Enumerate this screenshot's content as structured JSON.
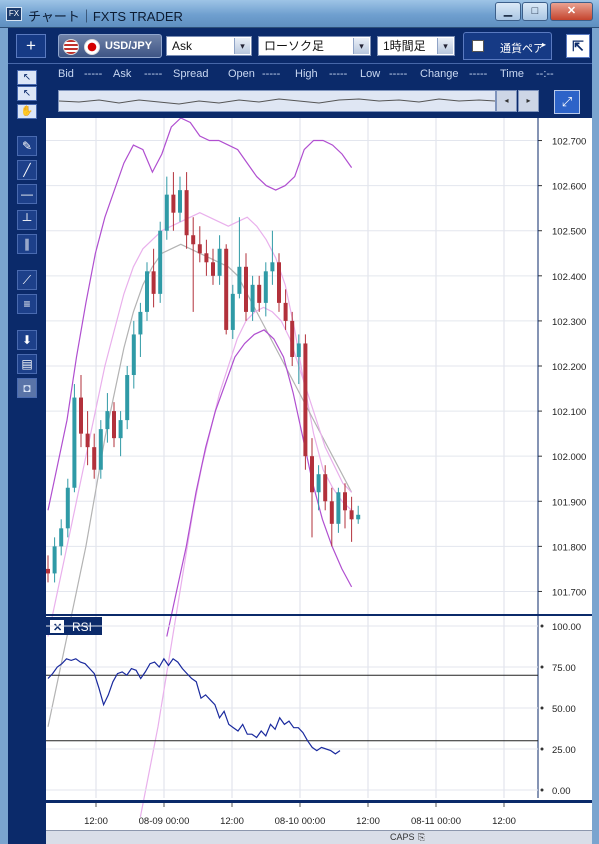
{
  "window": {
    "title": "チャート｜FXTS TRADER",
    "app_icon": "FX",
    "minimize": "▁",
    "maximize": "□",
    "close": "✕"
  },
  "toolbar": {
    "add_label": "+",
    "symbol": "USD/JPY",
    "price_type": "Ask",
    "chart_type": "ローソク足",
    "timeframe": "1時間足",
    "currency_tab": "通貨ペア",
    "currency_next": "▸",
    "detach_label": "⇱",
    "dropdown_arrow": "▾"
  },
  "info_bar": {
    "items": [
      {
        "label": "Bid",
        "value": "-----"
      },
      {
        "label": "Ask",
        "value": "-----"
      },
      {
        "label": "Spread",
        "value": ""
      },
      {
        "label": "Open",
        "value": "-----"
      },
      {
        "label": "High",
        "value": "-----"
      },
      {
        "label": "Low",
        "value": "-----"
      },
      {
        "label": "Change",
        "value": "-----"
      },
      {
        "label": "Time",
        "value": "--:--"
      }
    ]
  },
  "navigator": {
    "left_arrow": "◂",
    "right_arrow": "▸",
    "zoom_icon": "⤢"
  },
  "tools": [
    {
      "name": "pointer-icon",
      "glyph": "↖"
    },
    {
      "name": "crosshair-icon",
      "glyph": "↖"
    },
    {
      "name": "hand-icon",
      "glyph": "✋"
    },
    {
      "name": "trendline-tool-icon",
      "glyph": "✎"
    },
    {
      "name": "line-tool-icon",
      "glyph": "╱"
    },
    {
      "name": "horizontal-line-icon",
      "glyph": "—"
    },
    {
      "name": "vertical-line-icon",
      "glyph": "┴"
    },
    {
      "name": "parallel-lines-icon",
      "glyph": "∥"
    },
    {
      "name": "fan-tool-icon",
      "glyph": "⟋"
    },
    {
      "name": "fibonacci-icon",
      "glyph": "≡"
    },
    {
      "name": "download-icon",
      "glyph": "⬇"
    },
    {
      "name": "list-icon",
      "glyph": "▤"
    },
    {
      "name": "camera-icon",
      "glyph": "◘"
    }
  ],
  "chart_data": {
    "type": "candlestick",
    "symbol": "USD/JPY",
    "price_axis": {
      "ylim": [
        101.65,
        102.75
      ],
      "ticks": [
        "102.700",
        "102.600",
        "102.500",
        "102.400",
        "102.300",
        "102.200",
        "102.100",
        "102.000",
        "101.900",
        "101.800",
        "101.700"
      ]
    },
    "time_axis": {
      "labels": [
        "12:00",
        "08-09 00:00",
        "12:00",
        "08-10 00:00",
        "12:00",
        "08-11 00:00",
        "12:00"
      ]
    },
    "colors": {
      "up": "#2f9aa6",
      "down": "#b2313b",
      "band_outer": "#b04fd0",
      "band_mid": "#e9b0ec",
      "band_center": "#b3b3b3",
      "rsi": "#1a2a9e",
      "panel_border": "#0b2a6a"
    },
    "candles": [
      {
        "o": 101.75,
        "h": 101.78,
        "l": 101.72,
        "c": 101.74
      },
      {
        "o": 101.74,
        "h": 101.82,
        "l": 101.72,
        "c": 101.8
      },
      {
        "o": 101.8,
        "h": 101.86,
        "l": 101.78,
        "c": 101.84
      },
      {
        "o": 101.84,
        "h": 101.95,
        "l": 101.82,
        "c": 101.93
      },
      {
        "o": 101.93,
        "h": 102.16,
        "l": 101.92,
        "c": 102.13
      },
      {
        "o": 102.13,
        "h": 102.18,
        "l": 102.02,
        "c": 102.05
      },
      {
        "o": 102.05,
        "h": 102.1,
        "l": 101.98,
        "c": 102.02
      },
      {
        "o": 102.02,
        "h": 102.05,
        "l": 101.95,
        "c": 101.97
      },
      {
        "o": 101.97,
        "h": 102.08,
        "l": 101.95,
        "c": 102.06
      },
      {
        "o": 102.06,
        "h": 102.14,
        "l": 102.03,
        "c": 102.1
      },
      {
        "o": 102.1,
        "h": 102.12,
        "l": 102.02,
        "c": 102.04
      },
      {
        "o": 102.04,
        "h": 102.1,
        "l": 102.0,
        "c": 102.08
      },
      {
        "o": 102.08,
        "h": 102.2,
        "l": 102.06,
        "c": 102.18
      },
      {
        "o": 102.18,
        "h": 102.3,
        "l": 102.15,
        "c": 102.27
      },
      {
        "o": 102.27,
        "h": 102.34,
        "l": 102.22,
        "c": 102.32
      },
      {
        "o": 102.32,
        "h": 102.43,
        "l": 102.3,
        "c": 102.41
      },
      {
        "o": 102.41,
        "h": 102.46,
        "l": 102.33,
        "c": 102.36
      },
      {
        "o": 102.36,
        "h": 102.52,
        "l": 102.34,
        "c": 102.5
      },
      {
        "o": 102.5,
        "h": 102.62,
        "l": 102.48,
        "c": 102.58
      },
      {
        "o": 102.58,
        "h": 102.63,
        "l": 102.5,
        "c": 102.54
      },
      {
        "o": 102.54,
        "h": 102.62,
        "l": 102.52,
        "c": 102.59
      },
      {
        "o": 102.59,
        "h": 102.63,
        "l": 102.46,
        "c": 102.49
      },
      {
        "o": 102.49,
        "h": 102.53,
        "l": 102.32,
        "c": 102.47
      },
      {
        "o": 102.47,
        "h": 102.51,
        "l": 102.43,
        "c": 102.45
      },
      {
        "o": 102.45,
        "h": 102.48,
        "l": 102.4,
        "c": 102.43
      },
      {
        "o": 102.43,
        "h": 102.46,
        "l": 102.38,
        "c": 102.4
      },
      {
        "o": 102.4,
        "h": 102.49,
        "l": 102.38,
        "c": 102.46
      },
      {
        "o": 102.46,
        "h": 102.47,
        "l": 102.27,
        "c": 102.28
      },
      {
        "o": 102.28,
        "h": 102.38,
        "l": 102.26,
        "c": 102.36
      },
      {
        "o": 102.36,
        "h": 102.53,
        "l": 102.35,
        "c": 102.42
      },
      {
        "o": 102.42,
        "h": 102.45,
        "l": 102.3,
        "c": 102.32
      },
      {
        "o": 102.32,
        "h": 102.4,
        "l": 102.3,
        "c": 102.38
      },
      {
        "o": 102.38,
        "h": 102.4,
        "l": 102.32,
        "c": 102.34
      },
      {
        "o": 102.34,
        "h": 102.43,
        "l": 102.31,
        "c": 102.41
      },
      {
        "o": 102.41,
        "h": 102.5,
        "l": 102.38,
        "c": 102.43
      },
      {
        "o": 102.43,
        "h": 102.45,
        "l": 102.32,
        "c": 102.34
      },
      {
        "o": 102.34,
        "h": 102.37,
        "l": 102.28,
        "c": 102.3
      },
      {
        "o": 102.3,
        "h": 102.32,
        "l": 102.2,
        "c": 102.22
      },
      {
        "o": 102.22,
        "h": 102.27,
        "l": 102.16,
        "c": 102.25
      },
      {
        "o": 102.25,
        "h": 102.27,
        "l": 101.97,
        "c": 102.0
      },
      {
        "o": 102.0,
        "h": 102.04,
        "l": 101.82,
        "c": 101.92
      },
      {
        "o": 101.92,
        "h": 101.98,
        "l": 101.88,
        "c": 101.96
      },
      {
        "o": 101.96,
        "h": 101.98,
        "l": 101.88,
        "c": 101.9
      },
      {
        "o": 101.9,
        "h": 101.93,
        "l": 101.8,
        "c": 101.85
      },
      {
        "o": 101.85,
        "h": 101.93,
        "l": 101.83,
        "c": 101.92
      },
      {
        "o": 101.92,
        "h": 101.94,
        "l": 101.84,
        "c": 101.88
      },
      {
        "o": 101.88,
        "h": 101.91,
        "l": 101.81,
        "c": 101.86
      },
      {
        "o": 101.86,
        "h": 101.89,
        "l": 101.85,
        "c": 101.87
      }
    ],
    "bands": {
      "outer_upper": [
        101.88,
        101.98,
        102.08,
        102.22,
        102.34,
        102.45,
        102.53,
        102.59,
        102.65,
        102.69,
        102.68,
        102.63,
        102.67,
        102.73,
        102.75,
        102.74,
        102.71,
        102.7,
        102.7,
        102.69,
        102.68,
        102.65,
        102.62,
        102.6,
        102.59,
        102.6,
        102.62,
        102.68,
        102.7,
        102.7,
        102.69,
        102.67,
        102.64
      ],
      "mid_upper": [
        101.6,
        101.7,
        101.8,
        101.9,
        102.0,
        102.1,
        102.2,
        102.28,
        102.36,
        102.42,
        102.46,
        102.48,
        102.5,
        102.51,
        102.52,
        102.53,
        102.54,
        102.53,
        102.52,
        102.51,
        102.52,
        102.53,
        102.51,
        102.48,
        102.44,
        102.38,
        102.28,
        102.16,
        102.05,
        101.97,
        101.93,
        101.9,
        101.88
      ],
      "center": [
        101.4,
        101.5,
        101.6,
        101.7,
        101.8,
        101.92,
        102.04,
        102.14,
        102.24,
        102.32,
        102.38,
        102.42,
        102.45,
        102.46,
        102.47,
        102.46,
        102.45,
        102.44,
        102.43,
        102.42,
        102.4,
        102.36,
        102.32,
        102.28,
        102.24,
        102.2,
        102.16,
        102.12,
        102.08,
        102.04,
        102.0,
        101.96,
        101.92
      ],
      "mid_lower": [
        101.2,
        101.3,
        101.4,
        101.52,
        101.64,
        101.76,
        101.88,
        101.98,
        102.06,
        102.14,
        102.2,
        102.26,
        102.3,
        102.32,
        102.33,
        102.32,
        102.3,
        102.26,
        102.2,
        102.14,
        102.08,
        102.02,
        101.98,
        101.94,
        101.92
      ],
      "outer_lower": [
        101.6,
        101.7,
        101.8,
        101.92,
        102.02,
        102.1,
        102.16,
        102.22,
        102.25,
        102.27,
        102.28,
        102.26,
        102.22,
        102.14,
        102.04,
        101.94,
        101.86,
        101.8,
        101.75,
        101.71
      ]
    },
    "rsi": {
      "title": "RSI",
      "close_label": "✕",
      "ylim": [
        0,
        100
      ],
      "ticks": [
        "100.00",
        "75.00",
        "50.00",
        "25.00",
        "0.00"
      ],
      "levels": [
        70,
        30
      ],
      "values": [
        68,
        71,
        75,
        77,
        80,
        79,
        80,
        78,
        77,
        74,
        71,
        62,
        52,
        58,
        66,
        71,
        72,
        70,
        74,
        73,
        68,
        72,
        77,
        78,
        75,
        80,
        76,
        80,
        78,
        74,
        71,
        68,
        66,
        56,
        58,
        55,
        52,
        44,
        48,
        40,
        38,
        36,
        40,
        34,
        34,
        32,
        36,
        33,
        40,
        37,
        44,
        40,
        42,
        38,
        38,
        35,
        30,
        26,
        24,
        26,
        25,
        24,
        22,
        24
      ]
    }
  },
  "statusbar": {
    "items": [
      "CAPS",
      "⎘"
    ]
  }
}
